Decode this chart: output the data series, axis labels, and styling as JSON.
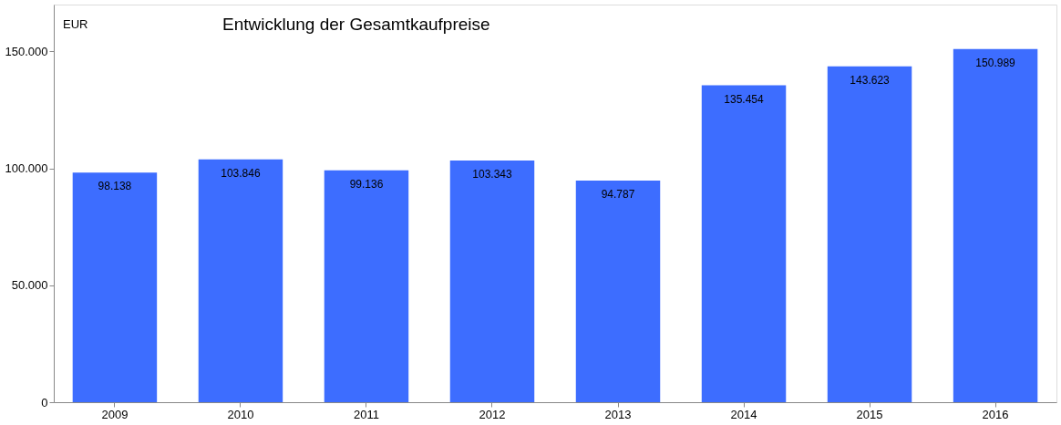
{
  "chart_data": {
    "type": "bar",
    "title": "Entwicklung der Gesamtkaufpreise",
    "ylabel": "EUR",
    "categories": [
      "2009",
      "2010",
      "2011",
      "2012",
      "2013",
      "2014",
      "2015",
      "2016"
    ],
    "values": [
      98138,
      103846,
      99136,
      103343,
      94787,
      135454,
      143623,
      150989
    ],
    "value_labels": [
      "98.138",
      "103.846",
      "99.136",
      "103.343",
      "94.787",
      "135.454",
      "143.623",
      "150.989"
    ],
    "color": "#3d6dff",
    "ylim": [
      0,
      170000
    ],
    "yticks": [
      {
        "value": 0,
        "label": "0"
      },
      {
        "value": 50000,
        "label": "50.000"
      },
      {
        "value": 100000,
        "label": "100.000"
      },
      {
        "value": 150000,
        "label": "150.000"
      }
    ],
    "grid": false
  }
}
